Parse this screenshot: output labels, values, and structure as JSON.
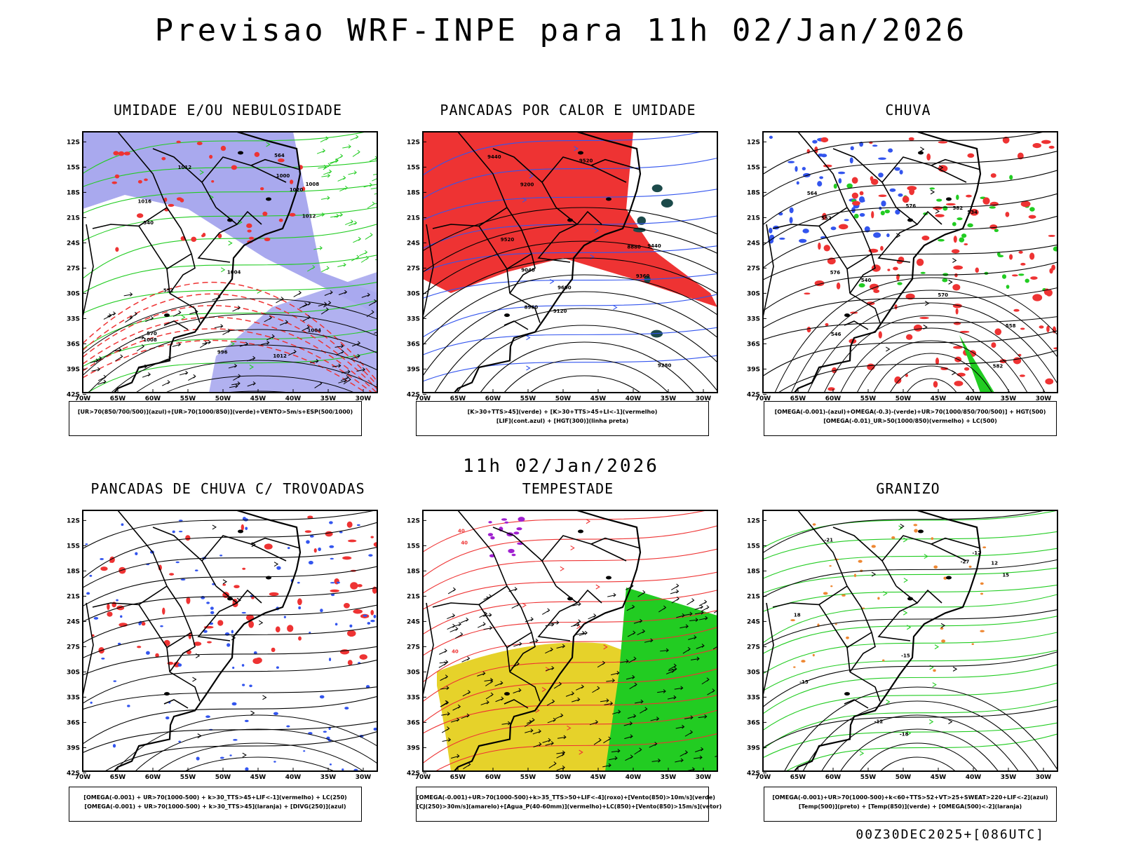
{
  "title": "Previsao WRF-INPE  para 11h 02/Jan/2026",
  "mid_title": "11h 02/Jan/2026",
  "footer": "00Z30DEC2025+[086UTC]",
  "axes": {
    "lat_ticks": [
      "12S",
      "15S",
      "18S",
      "21S",
      "24S",
      "27S",
      "30S",
      "33S",
      "36S",
      "39S",
      "42S"
    ],
    "lon_ticks": [
      "70W",
      "65W",
      "60W",
      "55W",
      "50W",
      "45W",
      "40W",
      "35W",
      "30W"
    ]
  },
  "colors": {
    "green": "#22cc22",
    "red": "#ee3333",
    "blue": "#3355ee",
    "lilac": "#a9a9ee",
    "yellow": "#e6d22a",
    "purple": "#a020d0",
    "orange": "#ee8833",
    "black": "#000000"
  },
  "panels": [
    {
      "id": "umidade",
      "title": "UMIDADE E/OU NEBULOSIDADE",
      "legend": [
        "[UR>70(850/700/500)](azul)+[UR>70(1000/850)](verde)+VENTO>5m/s+ESP(500/1000)"
      ],
      "labels": [
        "1012",
        "1012",
        "1012",
        "1016",
        "1008",
        "1008",
        "1004",
        "1004",
        "1000",
        "1020",
        "570",
        "564",
        "552",
        "540",
        "996"
      ]
    },
    {
      "id": "pancadas-calor",
      "title": "PANCADAS POR CALOR E UMIDADE",
      "legend": [
        "[K>30+TTS>45](verde) + [K>30+TTS>45+LI<-1](vermelho)",
        "[LIF](cont.azul) + [HGT(300)](linha preta)"
      ],
      "labels": [
        "9600",
        "9520",
        "9440",
        "9360",
        "9280",
        "9200",
        "9120",
        "9040",
        "8960",
        "8880",
        "9440",
        "9520"
      ]
    },
    {
      "id": "chuva",
      "title": "CHUVA",
      "legend": [
        "[OMEGA(-0.001)-(azul)+OMEGA(-0.3)-(verde)+UR>70(1000/850/700/500)] + HGT(500)",
        "[OMEGA(-0.01)_UR>50(1000/850)(vermelho) + LC(500)"
      ],
      "labels": [
        "582",
        "576",
        "570",
        "564",
        "558",
        "552",
        "546",
        "540",
        "534",
        "576",
        "582"
      ]
    },
    {
      "id": "trovoadas",
      "title": "PANCADAS DE CHUVA C/ TROVOADAS",
      "legend": [
        "[OMEGA(-0.001) + UR>70(1000-500) + k>30_TTS>45+LIF<-1](vermelho) + LC(250)",
        "[OMEGA(-0.001) + UR>70(1000-500) + k>30_TTS>45](laranja) + [DIVG(250)](azul)"
      ],
      "labels": []
    },
    {
      "id": "tempestade",
      "title": "TEMPESTADE",
      "legend": [
        "[OMEGA(-0.001)+UR>70(1000-500)+k>35_TTS>50+LIF<-4](roxo)+[Vento(850)>10m/s](verde)",
        "[CJ(250)>30m/s](amarelo)+[Agua_P(40-60mm)](vermelho)+LC(850)+[Vento(850)>15m/s](vetor)"
      ],
      "labels": [
        "40",
        "40",
        "40"
      ]
    },
    {
      "id": "granizo",
      "title": "GRANIZO",
      "legend": [
        "[OMEGA(-0.001)+UR>70(1000-500)+k<60+TTS>52+VT>25+SWEAT>220+LIF<-2](azul)",
        "[Temp(500)](preto) + [Temp(850)](verde) + [OMEGA(500)<-2](laranja)"
      ],
      "labels": [
        "-12",
        "-12",
        "-15",
        "-15",
        "-18",
        "-21",
        "-27",
        "15",
        "18",
        "12"
      ]
    }
  ]
}
